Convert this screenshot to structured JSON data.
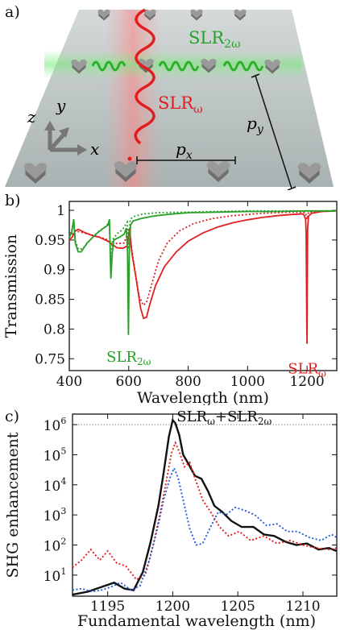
{
  "panels": {
    "a": {
      "label": "a)",
      "wave_labels": {
        "slr_2w": {
          "main": "SLR",
          "sub": "2ω"
        },
        "slr_w": {
          "main": "SLR",
          "sub": "ω"
        }
      },
      "axis_labels": {
        "z": "z",
        "y": "y",
        "x": "x"
      },
      "pitch_labels": {
        "px": {
          "main": "p",
          "sub": "x"
        },
        "py": {
          "main": "p",
          "sub": "y"
        }
      },
      "colors": {
        "red": "#e11d1d",
        "green": "#28b028",
        "plane": "#b9c1c1"
      }
    },
    "b": {
      "label": "b)"
    },
    "c": {
      "label": "c)"
    }
  },
  "chart_data": [
    {
      "type": "line",
      "panel": "b",
      "xlabel": "Wavelength (nm)",
      "ylabel": "Transmission",
      "xlim": [
        400,
        1300
      ],
      "ylim": [
        0.73,
        1.015
      ],
      "x_ticks": [
        400,
        600,
        800,
        1000,
        1200
      ],
      "y_ticks": [
        0.75,
        0.8,
        0.85,
        0.9,
        0.95,
        1
      ],
      "y_tick_labels": [
        "0.75",
        "0.8",
        "0.85",
        "0.9",
        "0.95",
        "1"
      ],
      "annotations": [
        {
          "main": "SLR",
          "sub": "2ω",
          "color": "#28a028",
          "x": 600,
          "y": 0.775
        },
        {
          "main": "SLR",
          "sub": "ω",
          "color": "#e02020",
          "x": 1200,
          "y": 0.755
        }
      ],
      "series": [
        {
          "color": "#e02020",
          "style": "solid",
          "x": [
            400,
            410,
            420,
            430,
            450,
            480,
            500,
            530,
            560,
            580,
            595,
            603,
            610,
            625,
            640,
            650,
            660,
            670,
            690,
            720,
            760,
            800,
            850,
            900,
            950,
            1000,
            1050,
            1100,
            1150,
            1185,
            1190,
            1195,
            1197,
            1199,
            1200,
            1202,
            1205,
            1215,
            1250,
            1300
          ],
          "y": [
            0.95,
            0.955,
            0.965,
            0.968,
            0.963,
            0.957,
            0.955,
            0.948,
            0.937,
            0.936,
            0.94,
            0.97,
            0.93,
            0.885,
            0.835,
            0.818,
            0.82,
            0.84,
            0.873,
            0.905,
            0.93,
            0.948,
            0.962,
            0.972,
            0.979,
            0.984,
            0.988,
            0.991,
            0.993,
            0.994,
            0.992,
            0.985,
            0.96,
            0.82,
            0.775,
            0.97,
            0.99,
            0.995,
            0.998,
            0.999
          ]
        },
        {
          "color": "#e02020",
          "style": "dotted",
          "x": [
            400,
            420,
            440,
            480,
            520,
            560,
            585,
            600,
            610,
            620,
            635,
            650,
            660,
            680,
            700,
            730,
            770,
            820,
            880,
            950,
            1050,
            1150,
            1195,
            1200,
            1205,
            1300
          ],
          "y": [
            0.955,
            0.965,
            0.963,
            0.958,
            0.952,
            0.944,
            0.945,
            0.968,
            0.935,
            0.9,
            0.855,
            0.84,
            0.845,
            0.88,
            0.915,
            0.945,
            0.965,
            0.978,
            0.986,
            0.991,
            0.995,
            0.997,
            0.996,
            0.985,
            0.997,
            0.999
          ]
        },
        {
          "color": "#28a028",
          "style": "solid",
          "x": [
            400,
            408,
            415,
            420,
            430,
            440,
            460,
            490,
            510,
            530,
            535,
            540,
            545,
            550,
            570,
            585,
            592,
            596,
            599,
            602,
            606,
            615,
            640,
            680,
            730,
            800,
            900,
            1000,
            1100,
            1200,
            1300
          ],
          "y": [
            0.955,
            0.963,
            0.985,
            0.945,
            0.93,
            0.93,
            0.945,
            0.96,
            0.968,
            0.975,
            0.985,
            0.885,
            0.93,
            0.95,
            0.955,
            0.96,
            0.97,
            0.93,
            0.79,
            0.93,
            0.975,
            0.982,
            0.986,
            0.99,
            0.993,
            0.996,
            0.997,
            0.998,
            0.998,
            0.999,
            0.999
          ]
        },
        {
          "color": "#28a028",
          "style": "dotted",
          "x": [
            400,
            410,
            415,
            420,
            430,
            445,
            470,
            500,
            520,
            535,
            540,
            545,
            560,
            580,
            595,
            600,
            605,
            620,
            650,
            700,
            800,
            900,
            1000,
            1300
          ],
          "y": [
            0.955,
            0.97,
            0.985,
            0.95,
            0.935,
            0.935,
            0.95,
            0.965,
            0.972,
            0.98,
            0.908,
            0.95,
            0.96,
            0.968,
            0.98,
            0.935,
            0.985,
            0.99,
            0.994,
            0.996,
            0.997,
            0.998,
            0.999,
            0.999
          ]
        }
      ]
    },
    {
      "type": "line",
      "panel": "c",
      "xlabel": "Fundamental wavelength (nm)",
      "ylabel": "SHG enhancement",
      "scale_y": "log",
      "xlim": [
        1192.3,
        1212.6
      ],
      "ylim_log10": [
        0.3,
        6.35
      ],
      "x_ticks": [
        1195,
        1200,
        1205,
        1210
      ],
      "y_tick_exponents": [
        1,
        2,
        3,
        4,
        5,
        6
      ],
      "reference_line_log10": 6.0,
      "annotation": {
        "part1": "SLR",
        "sub1": "ω",
        "plus": "+",
        "part2": "SLR",
        "sub2": "2ω"
      },
      "series": [
        {
          "color": "#111111",
          "style": "solid",
          "x": [
            1192.3,
            1193.5,
            1194.5,
            1195.5,
            1196.3,
            1197,
            1197.7,
            1198.3,
            1198.9,
            1199.3,
            1199.7,
            1200,
            1200.2,
            1200.5,
            1200.8,
            1201.2,
            1201.7,
            1202.2,
            1202.7,
            1203.2,
            1203.8,
            1204.5,
            1205.3,
            1206.2,
            1207,
            1207.8,
            1208.7,
            1209.5,
            1210.3,
            1211.2,
            1212,
            1212.6
          ],
          "y_log10": [
            0.35,
            0.45,
            0.6,
            0.75,
            0.55,
            0.5,
            1.1,
            2.1,
            3.3,
            4.4,
            5.6,
            6.15,
            6.05,
            5.65,
            5.0,
            4.7,
            4.3,
            4.2,
            3.8,
            3.3,
            3.1,
            2.8,
            2.6,
            2.6,
            2.35,
            2.3,
            2.1,
            2.0,
            2.05,
            1.85,
            1.9,
            1.8
          ]
        },
        {
          "color": "#e02020",
          "style": "dotted",
          "x": [
            1192.3,
            1193,
            1193.7,
            1194.4,
            1195,
            1195.7,
            1196.4,
            1197.2,
            1197.9,
            1198.5,
            1199,
            1199.5,
            1199.9,
            1200.2,
            1200.5,
            1200.9,
            1201.3,
            1201.8,
            1202.3,
            1202.9,
            1203.6,
            1204.3,
            1205.1,
            1206,
            1207,
            1208,
            1209,
            1210,
            1211,
            1212,
            1212.6
          ],
          "y_log10": [
            1.25,
            1.5,
            1.85,
            1.5,
            1.8,
            1.4,
            1.3,
            0.85,
            1.0,
            2.0,
            3.0,
            4.1,
            5.05,
            5.4,
            5.1,
            4.6,
            4.75,
            4.1,
            3.5,
            3.1,
            2.6,
            2.3,
            2.45,
            2.15,
            2.3,
            2.05,
            2.15,
            2.0,
            1.9,
            1.85,
            1.9
          ]
        },
        {
          "color": "#2a5bd7",
          "style": "dotted",
          "x": [
            1192.3,
            1193,
            1193.8,
            1194.5,
            1195.2,
            1196,
            1196.8,
            1197.5,
            1198.2,
            1198.8,
            1199.3,
            1199.8,
            1200.1,
            1200.4,
            1200.8,
            1201.3,
            1201.8,
            1202.3,
            1202.9,
            1203.5,
            1204.1,
            1204.8,
            1205.5,
            1206.3,
            1207.2,
            1208,
            1208.8,
            1209.6,
            1210.5,
            1211.4,
            1212.2,
            1212.6
          ],
          "y_log10": [
            0.5,
            0.55,
            0.45,
            0.5,
            0.6,
            0.75,
            0.5,
            0.65,
            1.5,
            2.5,
            3.5,
            4.25,
            4.55,
            4.25,
            3.5,
            2.55,
            2.0,
            2.05,
            2.6,
            3.1,
            3.0,
            3.25,
            3.15,
            3.0,
            2.65,
            2.7,
            2.45,
            2.45,
            2.25,
            2.15,
            2.35,
            2.25
          ]
        }
      ]
    }
  ]
}
